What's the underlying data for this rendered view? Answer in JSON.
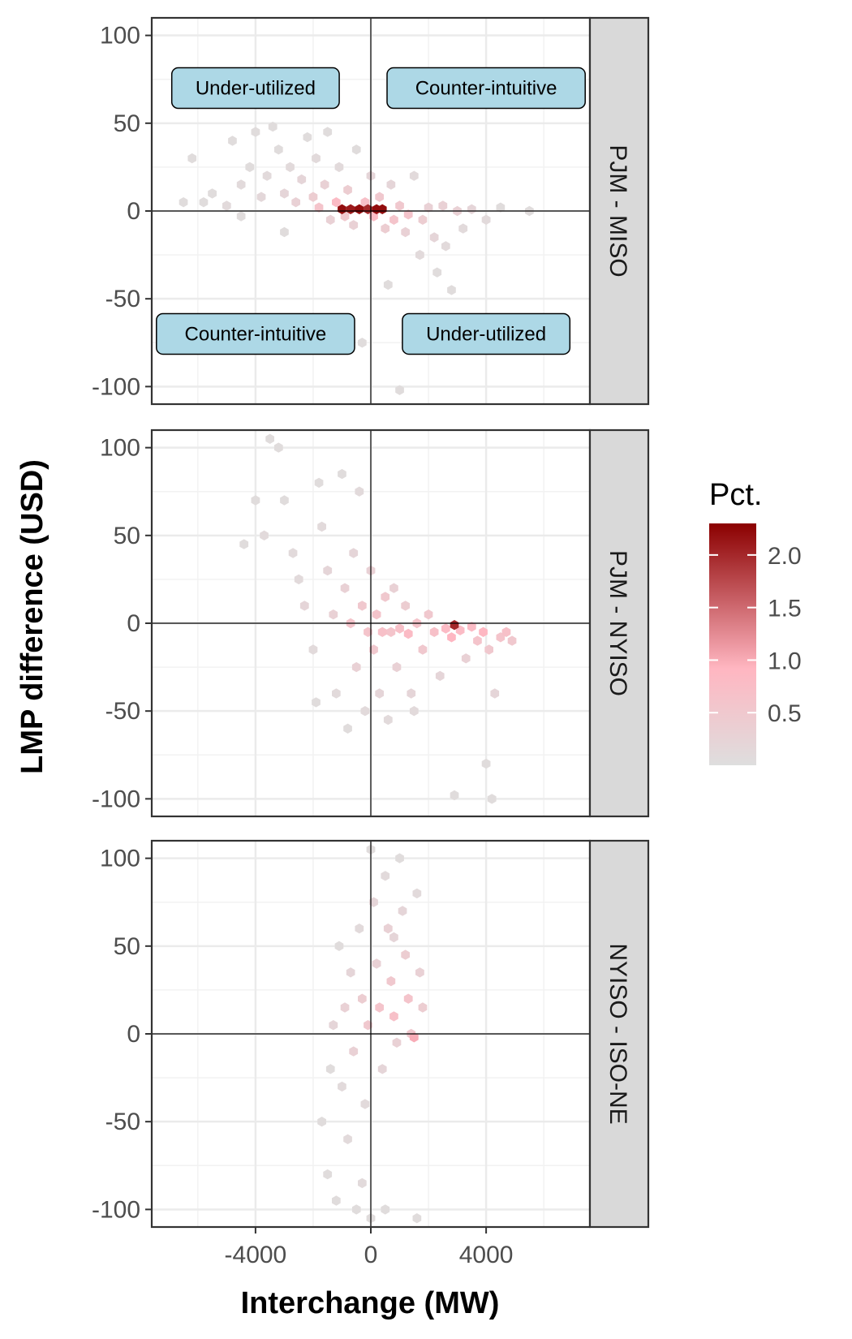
{
  "chart_data": {
    "type": "scatter",
    "subtype": "hexbin-facets",
    "xlabel": "Interchange (MW)",
    "ylabel": "LMP difference (USD)",
    "xlim": [
      -7600,
      7600
    ],
    "ylim": [
      -110,
      110
    ],
    "x_ticks": [
      -4000,
      0,
      4000
    ],
    "y_ticks": [
      -100,
      -50,
      0,
      50,
      100
    ],
    "grid": true,
    "legend": {
      "title": "Pct.",
      "position": "right",
      "min": 0,
      "max": 2.3,
      "ticks": [
        0.5,
        1.0,
        1.5,
        2.0
      ],
      "tick_labels": [
        "0.5",
        "1.0",
        "1.5",
        "2.0"
      ],
      "colors": [
        "#dedede",
        "#ffb6c1",
        "#8b0000"
      ]
    },
    "panels": [
      {
        "label": "PJM - MISO",
        "annotations": [
          {
            "text": "Under-utilized",
            "x": -4000,
            "y": 70
          },
          {
            "text": "Counter-intuitive",
            "x": 4000,
            "y": 70
          },
          {
            "text": "Counter-intuitive",
            "x": -4000,
            "y": -70
          },
          {
            "text": "Under-utilized",
            "x": 4000,
            "y": -70
          }
        ],
        "points": [
          [
            -6500,
            5,
            0.05
          ],
          [
            -6200,
            30,
            0.05
          ],
          [
            -5800,
            5,
            0.05
          ],
          [
            -5500,
            10,
            0.05
          ],
          [
            -5000,
            3,
            0.1
          ],
          [
            -4800,
            40,
            0.05
          ],
          [
            -4500,
            15,
            0.1
          ],
          [
            -4200,
            25,
            0.05
          ],
          [
            -4000,
            45,
            0.05
          ],
          [
            -3800,
            8,
            0.15
          ],
          [
            -3600,
            20,
            0.1
          ],
          [
            -3400,
            48,
            0.05
          ],
          [
            -3200,
            35,
            0.05
          ],
          [
            -3000,
            10,
            0.2
          ],
          [
            -2800,
            25,
            0.1
          ],
          [
            -2600,
            5,
            0.3
          ],
          [
            -2400,
            18,
            0.2
          ],
          [
            -2200,
            42,
            0.05
          ],
          [
            -2000,
            8,
            0.4
          ],
          [
            -1900,
            30,
            0.1
          ],
          [
            -1800,
            2,
            0.6
          ],
          [
            -1600,
            15,
            0.3
          ],
          [
            -1500,
            45,
            0.05
          ],
          [
            -1400,
            -5,
            0.3
          ],
          [
            -1200,
            5,
            0.8
          ],
          [
            -1100,
            25,
            0.1
          ],
          [
            -1000,
            1,
            2.2
          ],
          [
            -900,
            -3,
            0.5
          ],
          [
            -800,
            12,
            0.4
          ],
          [
            -700,
            1,
            2.1
          ],
          [
            -600,
            -8,
            0.3
          ],
          [
            -500,
            35,
            0.05
          ],
          [
            -400,
            1,
            2.2
          ],
          [
            -300,
            -75,
            0.05
          ],
          [
            -200,
            5,
            0.7
          ],
          [
            -100,
            1,
            2.0
          ],
          [
            0,
            20,
            0.2
          ],
          [
            100,
            -3,
            0.8
          ],
          [
            200,
            1,
            2.2
          ],
          [
            300,
            8,
            0.5
          ],
          [
            400,
            1,
            2.2
          ],
          [
            500,
            -10,
            0.4
          ],
          [
            700,
            15,
            0.2
          ],
          [
            800,
            -5,
            0.6
          ],
          [
            1000,
            3,
            0.5
          ],
          [
            1200,
            -12,
            0.3
          ],
          [
            1300,
            -2,
            0.6
          ],
          [
            1500,
            20,
            0.1
          ],
          [
            1700,
            -25,
            0.1
          ],
          [
            1800,
            -5,
            0.4
          ],
          [
            2000,
            2,
            0.3
          ],
          [
            2200,
            -15,
            0.2
          ],
          [
            2300,
            -35,
            0.05
          ],
          [
            2500,
            3,
            0.3
          ],
          [
            2600,
            -20,
            0.1
          ],
          [
            2800,
            -45,
            0.05
          ],
          [
            3000,
            0,
            0.3
          ],
          [
            3200,
            -10,
            0.1
          ],
          [
            3500,
            1,
            0.2
          ],
          [
            4000,
            -5,
            0.1
          ],
          [
            4500,
            2,
            0.05
          ],
          [
            5500,
            0,
            0.05
          ],
          [
            1000,
            -102,
            0.05
          ],
          [
            -4500,
            -3,
            0.05
          ],
          [
            -3000,
            -12,
            0.05
          ],
          [
            600,
            -42,
            0.05
          ]
        ]
      },
      {
        "label": "PJM - NYISO",
        "points": [
          [
            -4400,
            45,
            0.05
          ],
          [
            -4000,
            70,
            0.05
          ],
          [
            -3700,
            50,
            0.1
          ],
          [
            -3500,
            105,
            0.05
          ],
          [
            -3200,
            100,
            0.05
          ],
          [
            -3000,
            70,
            0.05
          ],
          [
            -2700,
            40,
            0.1
          ],
          [
            -2500,
            25,
            0.1
          ],
          [
            -2300,
            10,
            0.2
          ],
          [
            -2000,
            -15,
            0.1
          ],
          [
            -1800,
            80,
            0.05
          ],
          [
            -1700,
            55,
            0.1
          ],
          [
            -1500,
            30,
            0.2
          ],
          [
            -1300,
            5,
            0.3
          ],
          [
            -1200,
            -40,
            0.1
          ],
          [
            -1000,
            85,
            0.05
          ],
          [
            -900,
            20,
            0.3
          ],
          [
            -800,
            -60,
            0.05
          ],
          [
            -700,
            0,
            0.6
          ],
          [
            -600,
            40,
            0.2
          ],
          [
            -500,
            -25,
            0.3
          ],
          [
            -400,
            75,
            0.1
          ],
          [
            -300,
            10,
            0.5
          ],
          [
            -200,
            -50,
            0.1
          ],
          [
            -100,
            -5,
            0.6
          ],
          [
            0,
            30,
            0.3
          ],
          [
            100,
            -15,
            0.5
          ],
          [
            200,
            5,
            0.6
          ],
          [
            300,
            -40,
            0.2
          ],
          [
            400,
            -5,
            0.7
          ],
          [
            500,
            15,
            0.5
          ],
          [
            600,
            -55,
            0.1
          ],
          [
            700,
            -5,
            0.6
          ],
          [
            800,
            20,
            0.3
          ],
          [
            900,
            -25,
            0.3
          ],
          [
            1000,
            -3,
            0.7
          ],
          [
            1200,
            10,
            0.4
          ],
          [
            1300,
            -6,
            0.8
          ],
          [
            1400,
            -40,
            0.2
          ],
          [
            1600,
            0,
            0.6
          ],
          [
            1800,
            -15,
            0.5
          ],
          [
            2000,
            5,
            0.5
          ],
          [
            2200,
            -5,
            0.7
          ],
          [
            2400,
            -30,
            0.2
          ],
          [
            2600,
            -3,
            0.8
          ],
          [
            2800,
            -8,
            0.9
          ],
          [
            2900,
            -1,
            2.0
          ],
          [
            3100,
            -4,
            0.8
          ],
          [
            3300,
            -20,
            0.3
          ],
          [
            3500,
            -2,
            0.8
          ],
          [
            3700,
            -10,
            0.6
          ],
          [
            3900,
            -5,
            0.9
          ],
          [
            4100,
            -15,
            0.5
          ],
          [
            4300,
            -40,
            0.2
          ],
          [
            4500,
            -8,
            0.6
          ],
          [
            4700,
            -5,
            0.7
          ],
          [
            4900,
            -10,
            0.5
          ],
          [
            2900,
            -98,
            0.05
          ],
          [
            4000,
            -80,
            0.05
          ],
          [
            4200,
            -100,
            0.05
          ],
          [
            -1900,
            -45,
            0.05
          ],
          [
            1500,
            -50,
            0.1
          ]
        ]
      },
      {
        "label": "NYISO - ISO-NE",
        "points": [
          [
            -1700,
            -50,
            0.05
          ],
          [
            -1500,
            -80,
            0.05
          ],
          [
            -1300,
            5,
            0.2
          ],
          [
            -1200,
            -95,
            0.05
          ],
          [
            -1100,
            50,
            0.05
          ],
          [
            -1000,
            -30,
            0.1
          ],
          [
            -900,
            15,
            0.3
          ],
          [
            -800,
            -60,
            0.1
          ],
          [
            -700,
            35,
            0.2
          ],
          [
            -600,
            -10,
            0.3
          ],
          [
            -500,
            -100,
            0.05
          ],
          [
            -400,
            60,
            0.1
          ],
          [
            -300,
            20,
            0.4
          ],
          [
            -200,
            -40,
            0.1
          ],
          [
            -100,
            5,
            0.5
          ],
          [
            0,
            105,
            0.05
          ],
          [
            100,
            75,
            0.2
          ],
          [
            200,
            40,
            0.3
          ],
          [
            300,
            15,
            0.6
          ],
          [
            400,
            -20,
            0.2
          ],
          [
            500,
            90,
            0.1
          ],
          [
            600,
            60,
            0.3
          ],
          [
            700,
            30,
            0.5
          ],
          [
            800,
            10,
            0.7
          ],
          [
            900,
            -5,
            0.3
          ],
          [
            1000,
            100,
            0.05
          ],
          [
            1100,
            70,
            0.2
          ],
          [
            1200,
            45,
            0.4
          ],
          [
            1300,
            20,
            0.6
          ],
          [
            1400,
            0,
            0.5
          ],
          [
            1500,
            -2,
            1.0
          ],
          [
            1600,
            80,
            0.1
          ],
          [
            1700,
            35,
            0.3
          ],
          [
            1800,
            15,
            0.4
          ],
          [
            -300,
            -85,
            0.1
          ],
          [
            0,
            -105,
            0.05
          ],
          [
            500,
            -100,
            0.05
          ],
          [
            1600,
            -105,
            0.05
          ],
          [
            -1400,
            -20,
            0.05
          ],
          [
            800,
            55,
            0.2
          ]
        ]
      }
    ]
  }
}
